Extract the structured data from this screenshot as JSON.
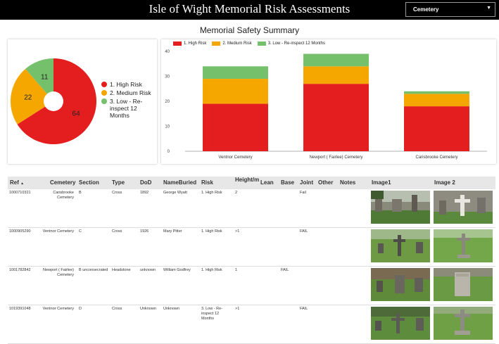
{
  "header": {
    "title": "Isle of Wight Memorial Risk Assessments",
    "dropdown_value": "Cemetery"
  },
  "summary": {
    "title": "Memorial Safety Summary"
  },
  "colors": {
    "high": "#e41e1e",
    "medium": "#f5a700",
    "low": "#75c06b"
  },
  "pie": {
    "slices": [
      {
        "label": "1. High Risk",
        "value": 64,
        "color": "#e41e1e"
      },
      {
        "label": "2. Medium Risk",
        "value": 22,
        "color": "#f5a700"
      },
      {
        "label": "3. Low - Re-inspect 12 Months",
        "value": 11,
        "color": "#75c06b"
      }
    ]
  },
  "bar_legend": [
    "1. High Risk",
    "2. Medium Risk",
    "3. Low - Re-inspect 12 Months"
  ],
  "chart_data": {
    "type": "bar",
    "stacked": true,
    "categories": [
      "Ventnor Cemetery",
      "Newport ( Fairlee) Cemetery",
      "Carisbrooke Cemetery"
    ],
    "series": [
      {
        "name": "1. High Risk",
        "values": [
          19,
          27,
          18
        ]
      },
      {
        "name": "2. Medium Risk",
        "values": [
          10,
          7,
          5
        ]
      },
      {
        "name": "3. Low - Re-inspect 12 Months",
        "values": [
          5,
          5,
          1
        ]
      }
    ],
    "ylim": [
      0,
      40
    ],
    "yticks": [
      "0",
      "10",
      "20",
      "30",
      "40"
    ],
    "grid": false,
    "legend": "top-left"
  },
  "table": {
    "headers": [
      "Ref",
      "Cemetery",
      "Section",
      "Type",
      "DoD",
      "NameBuried",
      "Risk",
      "Height/m",
      "Lean",
      "Base",
      "Joint",
      "Other",
      "Notes",
      "Image1",
      "Image 2"
    ],
    "sort_indicator": "▲",
    "rows": [
      {
        "ref": "1000710321",
        "cemetery": "Carisbrooke Cemetery",
        "section": "B",
        "type": "Cross",
        "dod": "1892",
        "name": "George Wyatt",
        "risk": "1. High Risk",
        "height": "2",
        "lean": "",
        "base": "",
        "joint": "Fail",
        "other": "",
        "notes": ""
      },
      {
        "ref": "1000905290",
        "cemetery": "Ventnor Cemetery",
        "section": "C",
        "type": "Cross",
        "dod": "1926",
        "name": "Mary Pitter",
        "risk": "1. High Risk",
        "height": ">1",
        "lean": "",
        "base": "",
        "joint": "FAIL",
        "other": "",
        "notes": ""
      },
      {
        "ref": "1001782842",
        "cemetery": "Newport ( Fairlee) Cemetery",
        "section": "B unconsecrated",
        "type": "Headstone",
        "dod": "unknown",
        "name": "William Godfrey",
        "risk": "1. High Risk",
        "height": "1",
        "lean": "",
        "base": "FAIL",
        "joint": "",
        "other": "",
        "notes": ""
      },
      {
        "ref": "1019391048",
        "cemetery": "Ventnor Cemetery",
        "section": "D",
        "type": "Cross",
        "dod": "Unknown",
        "name": "Unknown",
        "risk": "3. Low - Re-inspect 12 Months",
        "height": ">1",
        "lean": "",
        "base": "",
        "joint": "FAIL",
        "other": "",
        "notes": ""
      }
    ]
  }
}
